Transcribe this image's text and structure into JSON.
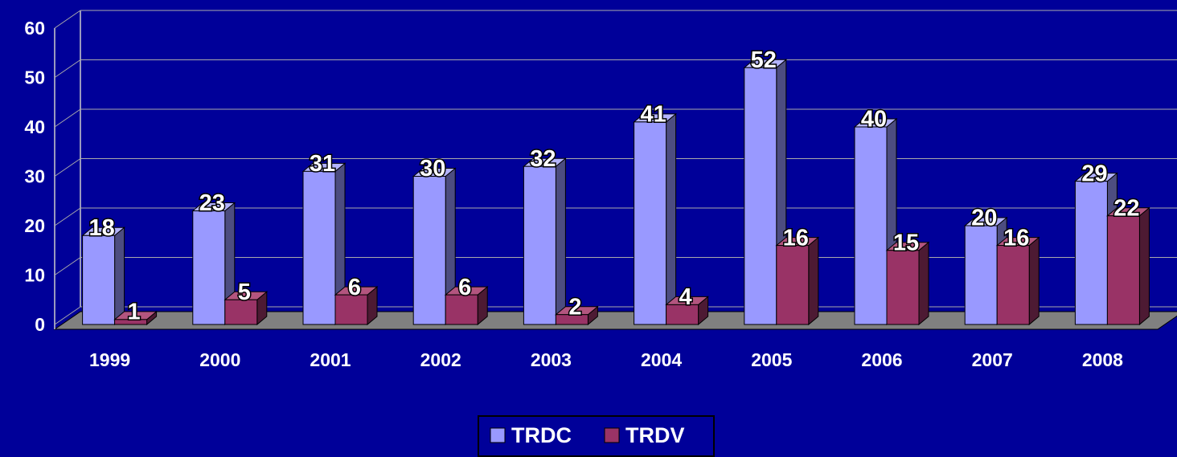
{
  "chart_data": {
    "type": "bar3d",
    "categories": [
      "1999",
      "2000",
      "2001",
      "2002",
      "2003",
      "2004",
      "2005",
      "2006",
      "2007",
      "2008"
    ],
    "series": [
      {
        "name": "TRDC",
        "color": "#9999ff",
        "values": [
          18,
          23,
          31,
          30,
          32,
          41,
          52,
          40,
          20,
          29
        ]
      },
      {
        "name": "TRDV",
        "color": "#993366",
        "values": [
          1,
          5,
          6,
          6,
          2,
          4,
          16,
          15,
          16,
          22
        ]
      }
    ],
    "ylim": [
      0,
      60
    ],
    "yticks": [
      0,
      10,
      20,
      30,
      40,
      50,
      60
    ],
    "grid": true,
    "legend": "bottom"
  }
}
